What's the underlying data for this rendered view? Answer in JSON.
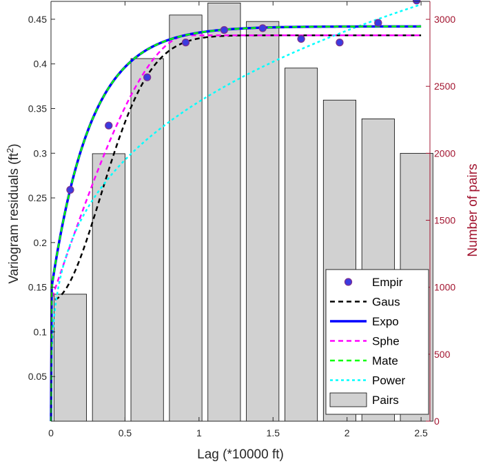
{
  "chart_data": {
    "type": "bar+line+scatter",
    "x_axis": {
      "label": "Lag (*10000 ft)",
      "range": [
        0,
        2.56
      ],
      "ticks": [
        0,
        0.5,
        1,
        1.5,
        2,
        2.5
      ],
      "tick_labels": [
        "0",
        "0.5",
        "1",
        "1.5",
        "2",
        "2.5"
      ]
    },
    "y_left": {
      "label_main": "Variogram residuals (ft",
      "label_sup": "2",
      "label_end": ")",
      "range": [
        0,
        0.47
      ],
      "ticks": [
        0.05,
        0.1,
        0.15,
        0.2,
        0.25,
        0.3,
        0.35,
        0.4,
        0.45
      ],
      "tick_labels": [
        "0.05",
        "0.1",
        "0.15",
        "0.2",
        "0.25",
        "0.3",
        "0.35",
        "0.4",
        "0.45"
      ]
    },
    "y_right": {
      "label": "Number of pairs",
      "range": [
        0,
        3134
      ],
      "ticks": [
        0,
        500,
        1000,
        1500,
        2000,
        2500,
        3000
      ],
      "tick_labels": [
        "0",
        "500",
        "1000",
        "1500",
        "2000",
        "2500",
        "3000"
      ],
      "color": "#a2142f"
    },
    "pairs": {
      "name": "Pairs",
      "x": [
        0.13,
        0.39,
        0.65,
        0.91,
        1.17,
        1.43,
        1.69,
        1.95,
        2.21,
        2.47
      ],
      "width": 0.22,
      "values": [
        948,
        1997,
        2707,
        3032,
        3122,
        2984,
        2636,
        2397,
        2257,
        2000
      ],
      "color": "#d1d1d1"
    },
    "empirical": {
      "name": "Empir",
      "x": [
        0.13,
        0.39,
        0.65,
        0.91,
        1.17,
        1.43,
        1.69,
        1.95,
        2.21,
        2.47
      ],
      "y": [
        0.259,
        0.331,
        0.385,
        0.424,
        0.438,
        0.44,
        0.428,
        0.424,
        0.446,
        0.471
      ],
      "fill": "#3b3be0",
      "edge": "#7e2f8e"
    },
    "models": [
      {
        "name": "Gaus",
        "type": "gaussian",
        "nugget": 0.135,
        "sill": 0.432,
        "range": 0.82,
        "color": "#000000",
        "dash": "7,5",
        "width": 2.5
      },
      {
        "name": "Expo",
        "type": "exponential",
        "nugget": 0.145,
        "sill": 0.442,
        "range": 0.8,
        "color": "#0000ff",
        "dash": "",
        "width": 3.5
      },
      {
        "name": "Sphe",
        "type": "spherical",
        "nugget": 0.135,
        "sill": 0.432,
        "range": 0.93,
        "color": "#ff00ff",
        "dash": "7,5",
        "width": 2.5
      },
      {
        "name": "Mate",
        "type": "exponential",
        "nugget": 0.145,
        "sill": 0.442,
        "range": 0.8,
        "color": "#00ff00",
        "dash": "7,5",
        "width": 2.5
      },
      {
        "name": "Power",
        "type": "power",
        "coef": 0.3577,
        "exponent": 0.29,
        "color": "#00ffff",
        "dash": "4,4",
        "width": 2.5
      }
    ],
    "legend": {
      "position": "bottom-right",
      "entries": [
        "Empir",
        "Gaus",
        "Expo",
        "Sphe",
        "Mate",
        "Power",
        "Pairs"
      ]
    }
  }
}
